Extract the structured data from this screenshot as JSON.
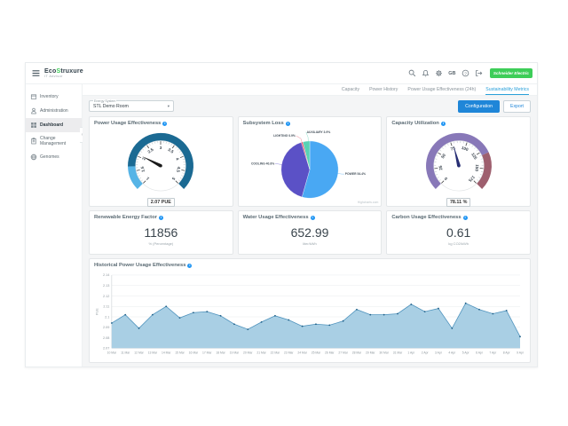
{
  "app": {
    "logo_pre": "Eco",
    "logo_accent": "S",
    "logo_post": "truxure",
    "logo_subtitle": "IT Advisor",
    "language": "GB",
    "vendor_button": "Schneider Electric"
  },
  "sidebar": {
    "items": [
      {
        "label": "Inventory"
      },
      {
        "label": "Administration"
      },
      {
        "label": "Dashboard",
        "active": true
      },
      {
        "label": "Change Management"
      },
      {
        "label": "Genomes"
      }
    ]
  },
  "tabs": [
    {
      "label": "Capacity"
    },
    {
      "label": "Power History"
    },
    {
      "label": "Power Usage Effectiveness (24h)"
    },
    {
      "label": "Sustainability Metrics",
      "active": true
    }
  ],
  "controls": {
    "energy_system_label": "Energy System",
    "energy_system_value": "STL Demo Room",
    "configuration": "Configuration",
    "export": "Export"
  },
  "cards": {
    "pue": {
      "title": "Power Usage Effectiveness",
      "value_label": "2.07 PUE"
    },
    "subsystem": {
      "title": "Subsystem Loss",
      "credit": "Highcharts.com"
    },
    "capacity": {
      "title": "Capacity Utilization",
      "value_label": "78.11 %"
    },
    "renewable": {
      "title": "Renewable Energy Factor",
      "value": "11856",
      "unit": "% (Percentage)"
    },
    "water": {
      "title": "Water Usage Effectiveness",
      "value": "652.99",
      "unit": "liter/kWh"
    },
    "carbon": {
      "title": "Carbon Usage Effectiveness",
      "value": "0.61",
      "unit": "kg CO2/kWh"
    },
    "historical": {
      "title": "Historical Power Usage Effectiveness"
    }
  },
  "chart_data": [
    {
      "id": "pue_gauge",
      "type": "gauge",
      "title": "Power Usage Effectiveness",
      "min": 1,
      "max": 5,
      "value": 2.07,
      "value_label": "2.07 PUE",
      "major_step": 0.5,
      "minor_step": 0.1,
      "bands": [
        {
          "from": 1,
          "to": 1.65,
          "color": "#56b4e6"
        },
        {
          "from": 1.65,
          "to": 5,
          "color": "#1b6a93"
        }
      ],
      "needle_color": "#1a1a1a"
    },
    {
      "id": "subsystem_loss",
      "type": "pie",
      "title": "Subsystem Loss",
      "slices": [
        {
          "label": "POWER",
          "pct": 54.4,
          "color": "#49a8f3",
          "anchor": "start",
          "label_pos": [
            127,
            63
          ]
        },
        {
          "label": "COOLING",
          "pct": 40.8,
          "color": "#5b51c6",
          "anchor": "end",
          "label_pos": [
            33,
            49
          ],
          "label_angle": 280
        },
        {
          "label": "LIGHTING",
          "pct": 0.9,
          "color": "#e8566b",
          "anchor": "end",
          "label_pos": [
            61,
            12
          ],
          "label_angle": 344
        },
        {
          "label": "AUXILIARY",
          "pct": 3.9,
          "color": "#57d2b4",
          "anchor": "start",
          "label_pos": [
            76,
            7
          ],
          "label_angle": 357
        }
      ]
    },
    {
      "id": "capacity_gauge",
      "type": "gauge",
      "title": "Capacity Utilization",
      "min": 0,
      "max": 175,
      "value": 78.11,
      "value_label": "78.11 %",
      "major_step": 25,
      "minor_step": 5,
      "bands": [
        {
          "from": 0,
          "to": 130,
          "color": "#8878b8"
        },
        {
          "from": 130,
          "to": 175,
          "color": "#9e5f6e"
        }
      ],
      "needle_color": "#272e74"
    },
    {
      "id": "historical_pue",
      "type": "area",
      "title": "Historical Power Usage Effectiveness",
      "ylabel": "PUE",
      "ylim": [
        2.07,
        2.14
      ],
      "yticks": [
        2.07,
        2.08,
        2.09,
        2.1,
        2.11,
        2.12,
        2.13,
        2.14
      ],
      "grid": true,
      "legend": "none",
      "fill": "#a9cfe4",
      "line_color": "#4f93bd",
      "marker_color": "#1f5f87",
      "x": [
        "10 Mar",
        "11 Mar",
        "12 Mar",
        "13 Mar",
        "14 Mar",
        "15 Mar",
        "16 Mar",
        "17 Mar",
        "18 Mar",
        "19 Mar",
        "20 Mar",
        "21 Mar",
        "22 Mar",
        "23 Mar",
        "24 Mar",
        "25 Mar",
        "26 Mar",
        "27 Mar",
        "28 Mar",
        "29 Mar",
        "30 Mar",
        "31 Mar",
        "1 Apr",
        "2 Apr",
        "3 Apr",
        "4 Apr",
        "5 Apr",
        "6 Apr",
        "7 Apr",
        "8 Apr",
        "9 Apr"
      ],
      "values": [
        2.094,
        2.102,
        2.089,
        2.102,
        2.11,
        2.099,
        2.104,
        2.105,
        2.101,
        2.093,
        2.088,
        2.095,
        2.101,
        2.097,
        2.091,
        2.093,
        2.092,
        2.096,
        2.107,
        2.102,
        2.102,
        2.103,
        2.112,
        2.105,
        2.108,
        2.089,
        2.113,
        2.107,
        2.103,
        2.106,
        2.081
      ]
    }
  ]
}
